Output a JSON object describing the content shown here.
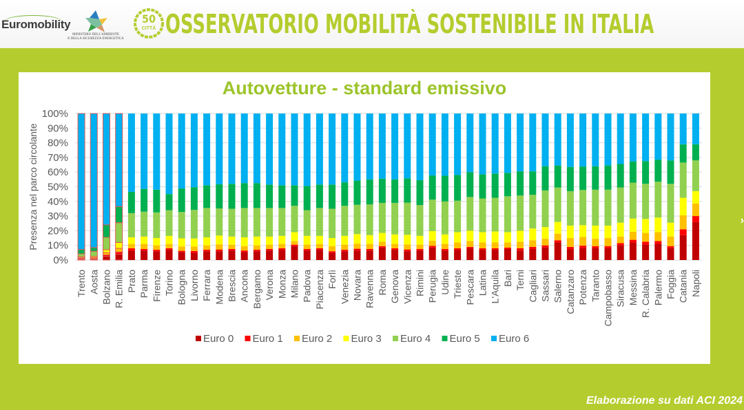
{
  "header": {
    "logo_euromobility": "Euromobility",
    "ministero_line1": "MINISTERO DELL'AMBIENTE",
    "ministero_line2": "E DELLA SICUREZZA ENERGETICA",
    "badge_number": "50",
    "badge_label": "CITTÀ",
    "banner_title": "OSSERVATORIO MOBILITÀ SOSTENIBILE IN ITALIA"
  },
  "footer": {
    "source": "Elaborazione su dati ACI 2024",
    "nav_arrow_icon": "›"
  },
  "colors": {
    "Euro 0": "#c00000",
    "Euro 1": "#ff0000",
    "Euro 2": "#ffc000",
    "Euro 3": "#ffff00",
    "Euro 4": "#92d050",
    "Euro 5": "#00b050",
    "Euro 6": "#00b0f0",
    "brand_green": "#b5cc2e"
  },
  "chart_data": {
    "type": "bar",
    "stacked": true,
    "normalized": true,
    "title": "Autovetture - standard emissivo",
    "xlabel": "",
    "ylabel": "Presenza nel parco circolante",
    "ylim": [
      0,
      100
    ],
    "yticks": [
      "0%",
      "10%",
      "20%",
      "30%",
      "40%",
      "50%",
      "60%",
      "70%",
      "80%",
      "90%",
      "100%"
    ],
    "grid": true,
    "legend_position": "bottom",
    "highlighted_categories": [
      "Trento",
      "Aosta",
      "Bolzano",
      "R. Emilia"
    ],
    "categories": [
      "Trento",
      "Aosta",
      "Bolzano",
      "R. Emilia",
      "Prato",
      "Parma",
      "Firenze",
      "Torino",
      "Bologna",
      "Livorno",
      "Ferrara",
      "Modena",
      "Brescia",
      "Ancona",
      "Bergamo",
      "Verona",
      "Monza",
      "Milano",
      "Padova",
      "Piacenza",
      "Forlì",
      "Venezia",
      "Novara",
      "Ravenna",
      "Roma",
      "Genova",
      "Vicenza",
      "Rimini",
      "Perugia",
      "Udine",
      "Trieste",
      "Pescara",
      "Latina",
      "L'Aquila",
      "Bari",
      "Terni",
      "Cagliari",
      "Sassari",
      "Salerno",
      "Catanzaro",
      "Potenza",
      "Taranto",
      "Campobasso",
      "Siracusa",
      "Messina",
      "R. Calabria",
      "Palermo",
      "Foggia",
      "Catania",
      "Napoli"
    ],
    "series": [
      {
        "name": "Euro 0",
        "values": [
          0.5,
          0.5,
          2.5,
          4.0,
          6.5,
          6.5,
          6.0,
          7.0,
          5.5,
          5.0,
          6.0,
          6.0,
          6.5,
          5.5,
          6.0,
          6.5,
          7.0,
          9.5,
          6.5,
          7.0,
          5.0,
          6.0,
          6.5,
          6.5,
          8.5,
          7.0,
          6.0,
          6.5,
          8.5,
          6.5,
          7.0,
          8.0,
          7.0,
          7.0,
          7.5,
          6.5,
          7.5,
          8.5,
          12.0,
          7.5,
          8.0,
          8.0,
          8.0,
          10.0,
          12.0,
          10.5,
          11.0,
          8.0,
          17.0,
          26.0
        ]
      },
      {
        "name": "Euro 1",
        "values": [
          0.5,
          0.5,
          1.0,
          1.5,
          1.5,
          1.0,
          1.0,
          1.0,
          0.8,
          1.2,
          1.0,
          1.2,
          1.0,
          1.0,
          1.0,
          1.0,
          1.0,
          1.0,
          1.0,
          1.0,
          1.0,
          1.0,
          1.2,
          1.0,
          1.0,
          1.0,
          1.2,
          1.0,
          1.2,
          1.0,
          1.0,
          1.0,
          1.0,
          1.0,
          1.0,
          1.5,
          1.5,
          1.5,
          1.5,
          1.5,
          1.8,
          1.5,
          1.5,
          1.5,
          1.8,
          2.0,
          2.0,
          1.5,
          4.0,
          4.0
        ]
      },
      {
        "name": "Euro 2",
        "values": [
          0.5,
          0.7,
          1.5,
          2.5,
          3.0,
          3.5,
          3.0,
          3.0,
          3.0,
          3.0,
          3.0,
          3.5,
          3.0,
          3.0,
          3.0,
          3.0,
          3.0,
          2.5,
          3.0,
          3.0,
          3.5,
          3.5,
          3.5,
          3.5,
          3.0,
          3.0,
          3.5,
          3.0,
          3.5,
          3.5,
          4.0,
          4.0,
          4.0,
          4.0,
          3.5,
          4.5,
          4.5,
          4.5,
          4.5,
          6.0,
          6.0,
          5.0,
          5.5,
          4.5,
          5.5,
          6.0,
          6.0,
          6.5,
          9.5,
          8.5
        ]
      },
      {
        "name": "Euro 3",
        "values": [
          0.7,
          0.8,
          2.0,
          4.0,
          4.5,
          5.0,
          5.0,
          5.5,
          5.5,
          5.5,
          5.5,
          6.0,
          5.5,
          6.0,
          6.0,
          5.5,
          5.5,
          6.0,
          6.0,
          5.5,
          5.5,
          6.0,
          6.5,
          6.0,
          6.0,
          6.5,
          6.5,
          6.0,
          6.5,
          6.5,
          7.0,
          7.0,
          7.0,
          7.5,
          7.0,
          7.5,
          8.0,
          8.0,
          8.0,
          8.5,
          8.0,
          9.0,
          8.5,
          9.5,
          9.0,
          9.5,
          10.0,
          9.5,
          12.0,
          8.5
        ]
      },
      {
        "name": "Euro 4",
        "values": [
          2.0,
          3.5,
          8.5,
          13.5,
          16.5,
          17.0,
          17.5,
          17.5,
          18.0,
          19.5,
          20.0,
          18.5,
          19.0,
          20.0,
          19.5,
          19.5,
          19.0,
          18.0,
          17.5,
          19.0,
          20.0,
          20.5,
          20.0,
          21.0,
          20.5,
          21.5,
          22.0,
          21.0,
          21.5,
          22.5,
          21.5,
          23.0,
          23.0,
          23.0,
          24.5,
          24.0,
          23.0,
          25.0,
          23.5,
          23.5,
          24.0,
          24.5,
          24.5,
          24.0,
          24.5,
          24.0,
          24.5,
          26.5,
          24.0,
          21.0
        ]
      },
      {
        "name": "Euro 5",
        "values": [
          3.0,
          2.5,
          8.5,
          11.0,
          14.5,
          15.5,
          15.5,
          11.0,
          16.0,
          15.5,
          15.5,
          16.5,
          17.0,
          17.0,
          17.0,
          16.0,
          15.5,
          14.0,
          16.5,
          16.0,
          16.5,
          16.0,
          16.5,
          17.0,
          16.5,
          16.0,
          16.5,
          17.0,
          16.5,
          17.5,
          17.5,
          17.0,
          16.5,
          16.5,
          16.0,
          16.5,
          16.0,
          16.5,
          15.0,
          16.5,
          16.0,
          16.0,
          16.5,
          16.0,
          14.5,
          15.5,
          15.0,
          16.0,
          12.5,
          11.0
        ]
      },
      {
        "name": "Euro 6",
        "values": [
          92.8,
          91.5,
          76.0,
          63.5,
          53.5,
          51.5,
          52.0,
          55.0,
          51.2,
          50.3,
          49.0,
          48.3,
          48.0,
          47.5,
          47.5,
          48.5,
          49.0,
          49.0,
          49.5,
          48.5,
          48.5,
          47.0,
          45.8,
          45.0,
          44.5,
          45.0,
          44.3,
          45.5,
          42.3,
          42.5,
          42.0,
          40.0,
          41.5,
          41.0,
          40.5,
          39.5,
          39.5,
          36.0,
          35.5,
          36.5,
          36.2,
          36.0,
          35.5,
          34.5,
          32.7,
          32.5,
          31.5,
          32.0,
          21.0,
          21.0
        ]
      }
    ]
  }
}
